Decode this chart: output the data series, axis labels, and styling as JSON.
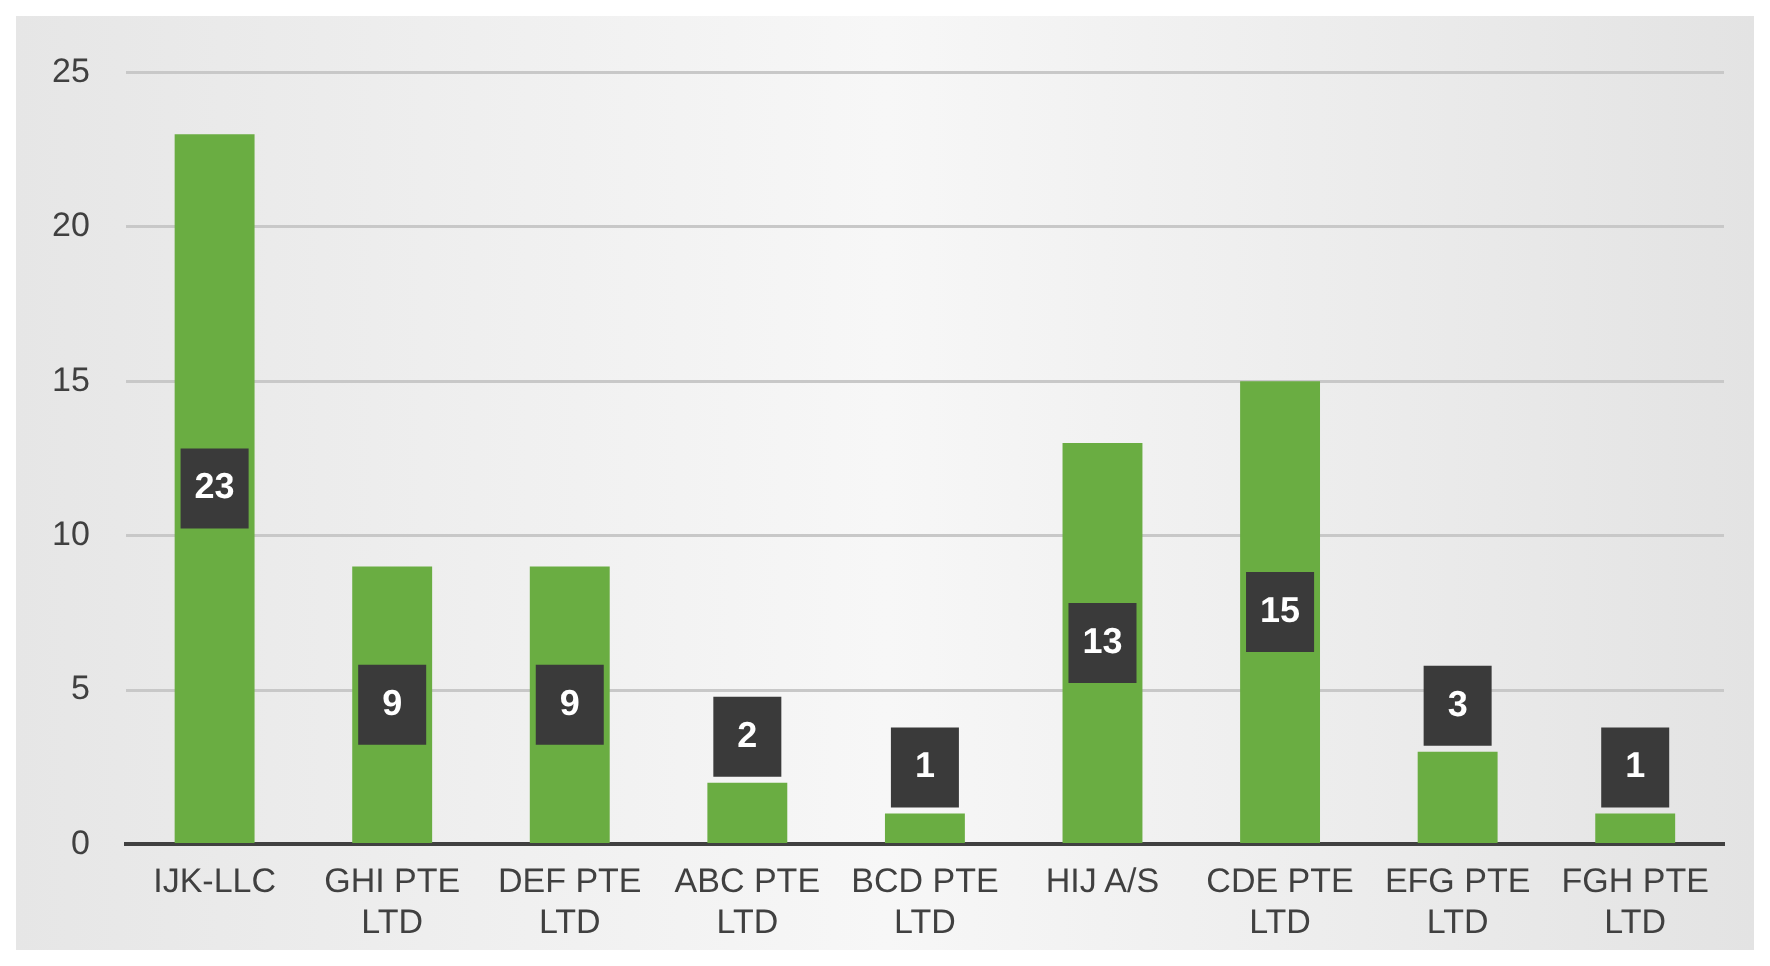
{
  "chart_data": {
    "type": "bar",
    "categories": [
      "IJK-LLC",
      "GHI PTE LTD",
      "DEF PTE LTD",
      "ABC PTE LTD",
      "BCD PTE LTD",
      "HIJ A/S",
      "CDE PTE LTD",
      "EFG PTE LTD",
      "FGH PTE LTD"
    ],
    "values": [
      23,
      9,
      9,
      2,
      1,
      13,
      15,
      3,
      1
    ],
    "color": "#6aad42",
    "ylim": [
      0,
      25
    ],
    "yticks": [
      0,
      5,
      10,
      15,
      20,
      25
    ],
    "grid": "y",
    "data_labels": true,
    "legend": false
  }
}
